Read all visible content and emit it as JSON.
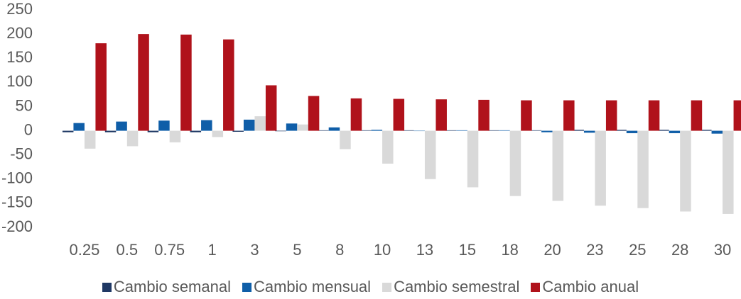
{
  "chart_data": {
    "type": "bar",
    "categories": [
      "0.25",
      "0.5",
      "0.75",
      "1",
      "3",
      "5",
      "8",
      "10",
      "13",
      "15",
      "18",
      "20",
      "23",
      "25",
      "28",
      "30"
    ],
    "series": [
      {
        "name": "Cambio semanal",
        "color": "#1f3864",
        "values": [
          -3,
          -3,
          -3,
          -3,
          -2,
          -1,
          1,
          1,
          1,
          1,
          1,
          1,
          2,
          2,
          2,
          2
        ]
      },
      {
        "name": "Cambio mensual",
        "color": "#0f5ea8",
        "values": [
          16,
          19,
          21,
          22,
          23,
          15,
          7,
          2,
          0,
          1,
          1,
          -3,
          -4,
          -5,
          -5,
          -6
        ]
      },
      {
        "name": "Cambio semestral",
        "color": "#d9d9d9",
        "values": [
          -37,
          -32,
          -24,
          -13,
          30,
          13,
          -38,
          -68,
          -100,
          -117,
          -135,
          -145,
          -155,
          -160,
          -167,
          -172
        ]
      },
      {
        "name": "Cambio anual",
        "color": "#b0121b",
        "values": [
          181,
          200,
          199,
          189,
          94,
          72,
          67,
          66,
          65,
          64,
          63,
          63,
          63,
          63,
          63,
          63
        ]
      }
    ],
    "ylim": [
      -200,
      250
    ],
    "yticks": [
      -200,
      -150,
      -100,
      -50,
      0,
      50,
      100,
      150,
      200,
      250
    ]
  }
}
